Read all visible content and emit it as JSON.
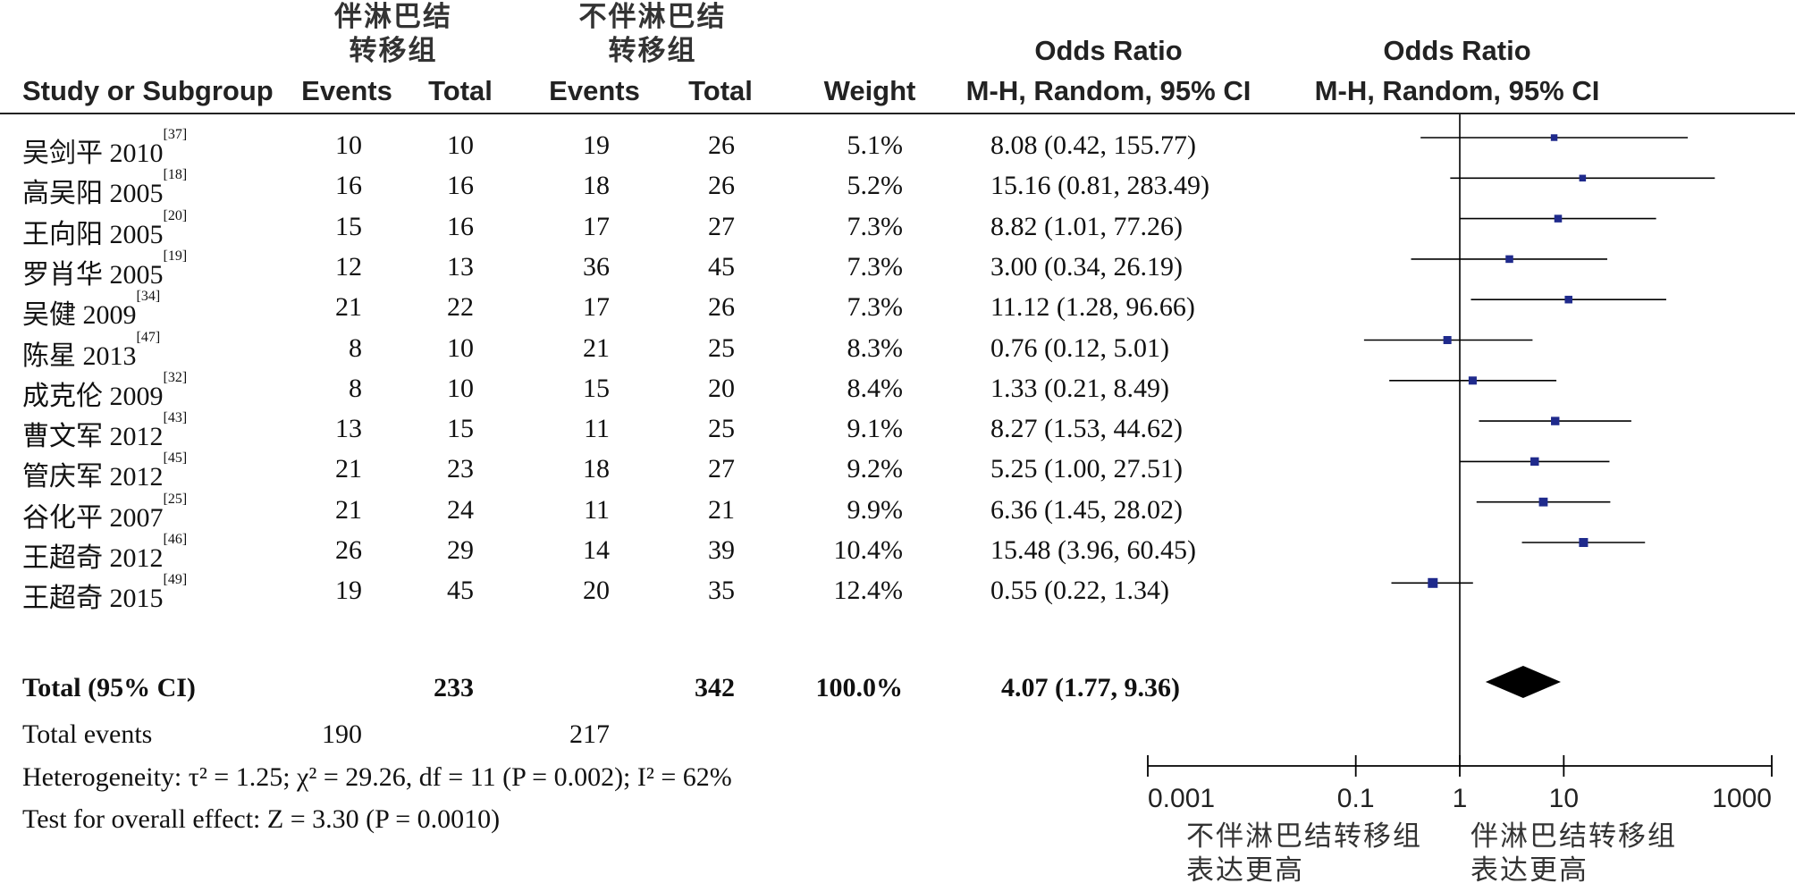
{
  "columns": {
    "group1_title": [
      "伴淋巴结",
      "转移组"
    ],
    "group2_title": [
      "不伴淋巴结",
      "转移组"
    ],
    "study": "Study or Subgroup",
    "events1": "Events",
    "total1": "Total",
    "events2": "Events",
    "total2": "Total",
    "weight": "Weight",
    "or_title": "Odds Ratio",
    "or_method": "M-H, Random, 95% CI",
    "plot_title": "Odds Ratio",
    "plot_method": "M-H, Random, 95% CI"
  },
  "rows_text": [
    {
      "study": "吴剑平 2010",
      "ref": "[37]",
      "e1": "10",
      "t1": "10",
      "e2": "19",
      "t2": "26",
      "w": "5.1%",
      "ci": "8.08 (0.42, 155.77)"
    },
    {
      "study": "高吴阳 2005",
      "ref": "[18]",
      "e1": "16",
      "t1": "16",
      "e2": "18",
      "t2": "26",
      "w": "5.2%",
      "ci": "15.16 (0.81, 283.49)"
    },
    {
      "study": "王向阳 2005",
      "ref": "[20]",
      "e1": "15",
      "t1": "16",
      "e2": "17",
      "t2": "27",
      "w": "7.3%",
      "ci": "8.82 (1.01, 77.26)"
    },
    {
      "study": "罗肖华 2005",
      "ref": "[19]",
      "e1": "12",
      "t1": "13",
      "e2": "36",
      "t2": "45",
      "w": "7.3%",
      "ci": "3.00 (0.34, 26.19)"
    },
    {
      "study": "吴健 2009",
      "ref": "[34]",
      "e1": "21",
      "t1": "22",
      "e2": "17",
      "t2": "26",
      "w": "7.3%",
      "ci": "11.12 (1.28, 96.66)"
    },
    {
      "study": "陈星 2013",
      "ref": "[47]",
      "e1": "8",
      "t1": "10",
      "e2": "21",
      "t2": "25",
      "w": "8.3%",
      "ci": "0.76 (0.12, 5.01)"
    },
    {
      "study": "成克伦 2009",
      "ref": "[32]",
      "e1": "8",
      "t1": "10",
      "e2": "15",
      "t2": "20",
      "w": "8.4%",
      "ci": "1.33 (0.21, 8.49)"
    },
    {
      "study": "曹文军 2012",
      "ref": "[43]",
      "e1": "13",
      "t1": "15",
      "e2": "11",
      "t2": "25",
      "w": "9.1%",
      "ci": "8.27 (1.53, 44.62)"
    },
    {
      "study": "管庆军 2012",
      "ref": "[45]",
      "e1": "21",
      "t1": "23",
      "e2": "18",
      "t2": "27",
      "w": "9.2%",
      "ci": "5.25 (1.00, 27.51)"
    },
    {
      "study": "谷化平 2007",
      "ref": "[25]",
      "e1": "21",
      "t1": "24",
      "e2": "11",
      "t2": "21",
      "w": "9.9%",
      "ci": "6.36 (1.45, 28.02)"
    },
    {
      "study": "王超奇 2012",
      "ref": "[46]",
      "e1": "26",
      "t1": "29",
      "e2": "14",
      "t2": "39",
      "w": "10.4%",
      "ci": "15.48 (3.96, 60.45)"
    },
    {
      "study": "王超奇 2015",
      "ref": "[49]",
      "e1": "19",
      "t1": "45",
      "e2": "20",
      "t2": "35",
      "w": "12.4%",
      "ci": "0.55 (0.22, 1.34)"
    }
  ],
  "total": {
    "label": "Total (95% CI)",
    "t1": "233",
    "t2": "342",
    "w": "100.0%",
    "ci": "4.07 (1.77, 9.36)"
  },
  "total_events": {
    "label": "Total events",
    "e1": "190",
    "e2": "217"
  },
  "heterogeneity": "Heterogeneity: τ² = 1.25; χ² = 29.26, df = 11 (P = 0.002); I² = 62%",
  "overall_effect": "Test for overall effect: Z = 3.30 (P = 0.0010)",
  "axis": {
    "ticks": [
      "0.001",
      "0.1",
      "1",
      "10",
      "1000"
    ],
    "left_note": [
      "不伴淋巴结转移组",
      "表达更高"
    ],
    "right_note": [
      "伴淋巴结转移组",
      "表达更高"
    ]
  },
  "colors": {
    "marker": "#1f2a8c",
    "diamond": "#000000",
    "line": "#000000"
  },
  "chart_data": {
    "type": "forest",
    "xscale": "log",
    "xlim": [
      0.001,
      1000
    ],
    "xticks": [
      0.001,
      0.1,
      1,
      10,
      1000
    ],
    "reference_line": 1,
    "studies": [
      {
        "name": "吴剑平 2010",
        "or": 8.08,
        "lo": 0.42,
        "hi": 155.77,
        "weight": 5.1
      },
      {
        "name": "高吴阳 2005",
        "or": 15.16,
        "lo": 0.81,
        "hi": 283.49,
        "weight": 5.2
      },
      {
        "name": "王向阳 2005",
        "or": 8.82,
        "lo": 1.01,
        "hi": 77.26,
        "weight": 7.3
      },
      {
        "name": "罗肖华 2005",
        "or": 3.0,
        "lo": 0.34,
        "hi": 26.19,
        "weight": 7.3
      },
      {
        "name": "吴健 2009",
        "or": 11.12,
        "lo": 1.28,
        "hi": 96.66,
        "weight": 7.3
      },
      {
        "name": "陈星 2013",
        "or": 0.76,
        "lo": 0.12,
        "hi": 5.01,
        "weight": 8.3
      },
      {
        "name": "成克伦 2009",
        "or": 1.33,
        "lo": 0.21,
        "hi": 8.49,
        "weight": 8.4
      },
      {
        "name": "曹文军 2012",
        "or": 8.27,
        "lo": 1.53,
        "hi": 44.62,
        "weight": 9.1
      },
      {
        "name": "管庆军 2012",
        "or": 5.25,
        "lo": 1.0,
        "hi": 27.51,
        "weight": 9.2
      },
      {
        "name": "谷化平 2007",
        "or": 6.36,
        "lo": 1.45,
        "hi": 28.02,
        "weight": 9.9
      },
      {
        "name": "王超奇 2012",
        "or": 15.48,
        "lo": 3.96,
        "hi": 60.45,
        "weight": 10.4
      },
      {
        "name": "王超奇 2015",
        "or": 0.55,
        "lo": 0.22,
        "hi": 1.34,
        "weight": 12.4
      }
    ],
    "pooled": {
      "or": 4.07,
      "lo": 1.77,
      "hi": 9.36
    }
  }
}
